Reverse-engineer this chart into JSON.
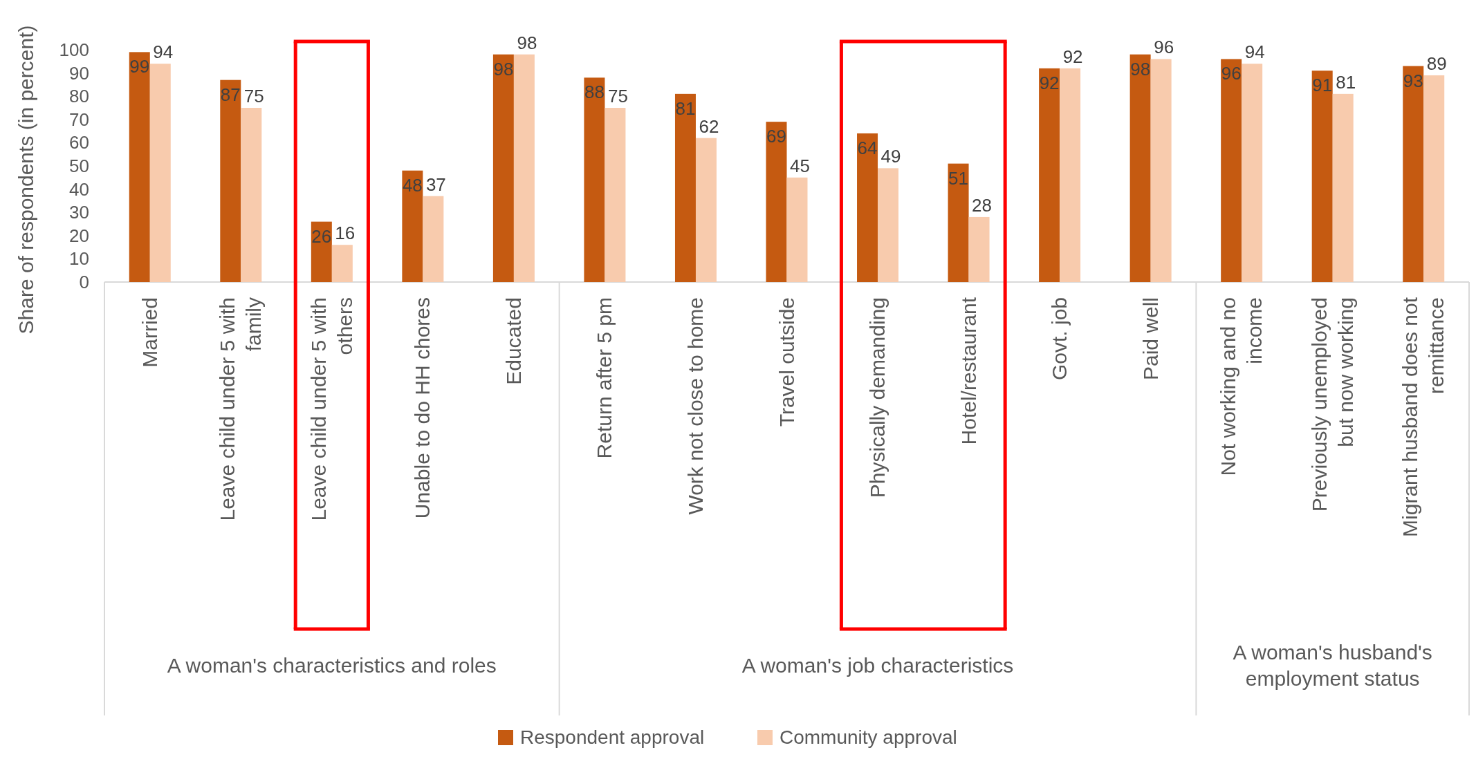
{
  "chart_data": {
    "type": "bar",
    "ylabel": "Share of respondents (in percent)",
    "categories": [
      "Married",
      "Leave child under 5 with family",
      "Leave child under 5 with others",
      "Unable to do HH chores",
      "Educated",
      "Return after 5 pm",
      "Work not close to home",
      "Travel outside",
      "Physically demanding",
      "Hotel/restaurant",
      "Govt. job",
      "Paid well",
      "Not working and no income",
      "Previously unemployed but now working",
      "Migrant husband does not remittance"
    ],
    "series": [
      {
        "name": "Respondent approval",
        "color": "#c55a11",
        "values": [
          99,
          87,
          26,
          48,
          98,
          88,
          81,
          69,
          64,
          51,
          92,
          98,
          96,
          91,
          93
        ]
      },
      {
        "name": "Community approval",
        "color": "#f8cbad",
        "values": [
          94,
          75,
          16,
          37,
          98,
          75,
          62,
          45,
          49,
          28,
          92,
          96,
          94,
          81,
          89
        ]
      }
    ],
    "ylim": [
      0,
      100
    ],
    "yticks": [
      0,
      10,
      20,
      30,
      40,
      50,
      60,
      70,
      80,
      90,
      100
    ],
    "grid": false,
    "data_labels": true,
    "legend": "bottom",
    "annotations": [
      "A woman's characteristics and roles",
      "A woman's job characteristics",
      "A woman's husband's employment status"
    ]
  }
}
